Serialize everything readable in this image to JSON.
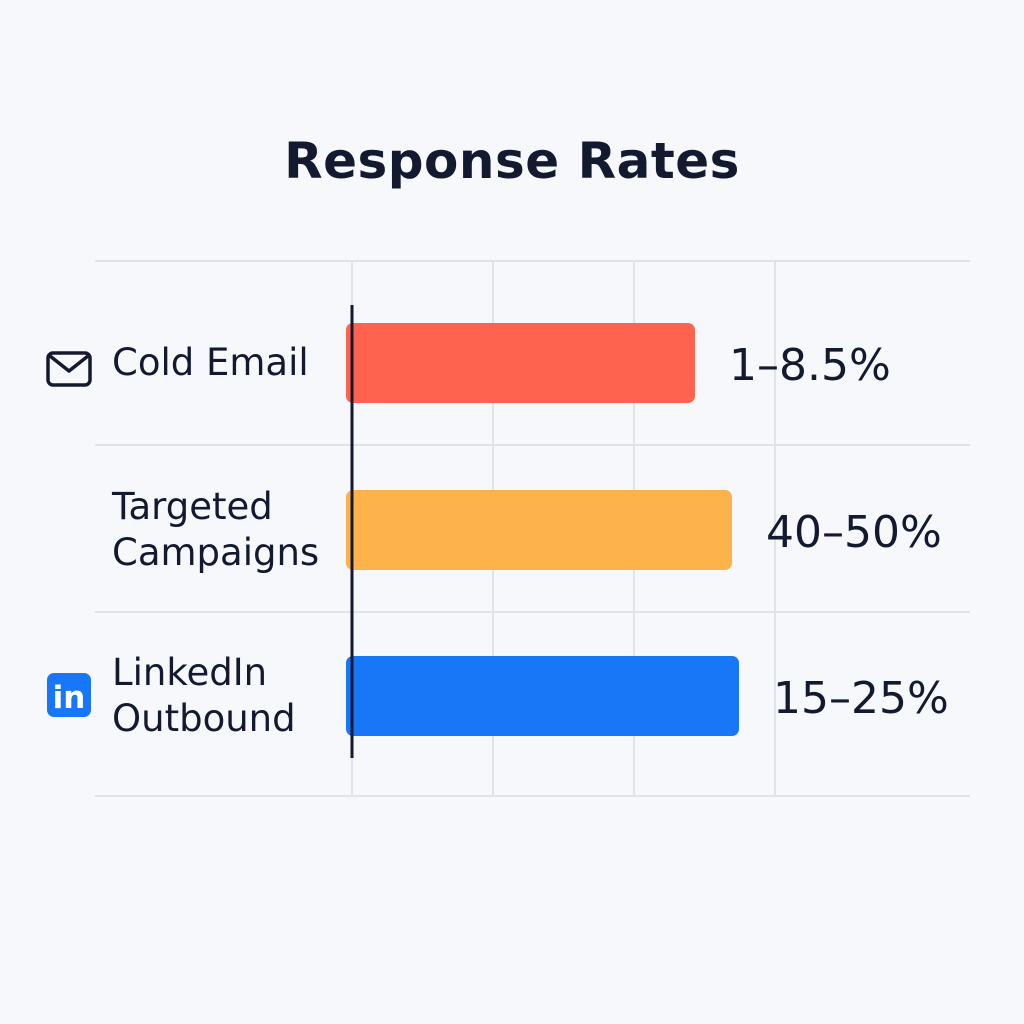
{
  "chart_data": {
    "type": "bar",
    "orientation": "horizontal",
    "title": "Response Rates",
    "xlabel": "",
    "ylabel": "",
    "grid": true,
    "legend": "none",
    "categories": [
      {
        "lines": [
          "Cold Email"
        ],
        "icon": "envelope-icon"
      },
      {
        "lines": [
          "Targeted",
          "Campaigns"
        ],
        "icon": ""
      },
      {
        "lines": [
          "LinkedIn",
          "Outbound"
        ],
        "icon": "linkedin-icon"
      }
    ],
    "values": [
      8.5,
      50,
      25
    ],
    "value_labels": [
      "1–8.5%",
      "40–50%",
      "15–25%"
    ],
    "bar_units": [
      0.965,
      1.07,
      1.09
    ],
    "bar_colors": [
      "#fe6350",
      "#feb24c",
      "#1877f7"
    ],
    "colors": {
      "title": "#131a30",
      "text": "#131a30",
      "grid": "#dfe3ea",
      "axis": "#131a30",
      "background": "#f7f8fb",
      "linkedin": "#1877f7"
    }
  }
}
